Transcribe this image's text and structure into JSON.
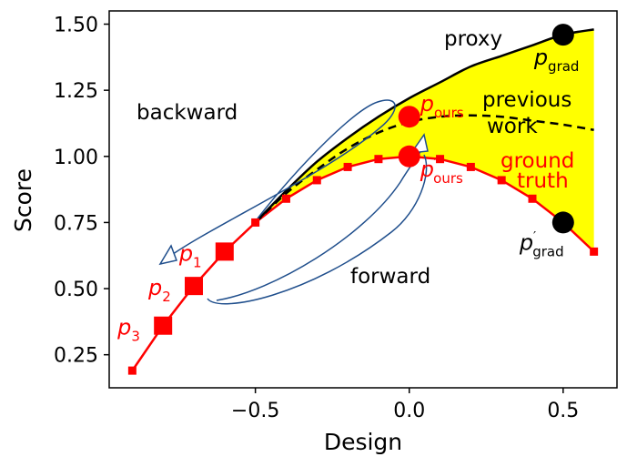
{
  "chart_data": {
    "type": "line",
    "xlabel": "Design",
    "ylabel": "Score",
    "xlim": [
      -0.975,
      0.675
    ],
    "ylim": [
      0.125,
      1.55
    ],
    "xticks": [
      -0.5,
      0.0,
      0.5
    ],
    "xtick_labels": [
      "−0.5",
      "0.0",
      "0.5"
    ],
    "yticks": [
      0.25,
      0.5,
      0.75,
      1.0,
      1.25,
      1.5
    ],
    "ytick_labels": [
      "0.25",
      "0.50",
      "0.75",
      "1.00",
      "1.25",
      "1.50"
    ],
    "grid": false,
    "series": [
      {
        "style": "ground-truth",
        "color": "#ff0000",
        "x": [
          -0.9,
          -0.8,
          -0.7,
          -0.6,
          -0.5,
          -0.4,
          -0.3,
          -0.2,
          -0.1,
          0.0,
          0.1,
          0.2,
          0.3,
          0.4,
          0.5,
          0.6
        ],
        "y": [
          0.19,
          0.36,
          0.51,
          0.64,
          0.75,
          0.84,
          0.91,
          0.96,
          0.99,
          1.0,
          0.99,
          0.96,
          0.91,
          0.84,
          0.75,
          0.64
        ]
      },
      {
        "style": "proxy",
        "color": "#000000",
        "x": [
          -0.5,
          -0.4,
          -0.3,
          -0.2,
          -0.1,
          0.0,
          0.1,
          0.2,
          0.3,
          0.4,
          0.5,
          0.6
        ],
        "y": [
          0.75,
          0.87,
          0.98,
          1.07,
          1.15,
          1.22,
          1.28,
          1.34,
          1.38,
          1.42,
          1.46,
          1.48
        ]
      },
      {
        "style": "previous-work",
        "color": "#000000",
        "x": [
          -0.5,
          -0.4,
          -0.3,
          -0.2,
          -0.1,
          0.0,
          0.1,
          0.2,
          0.3,
          0.4,
          0.5,
          0.6
        ],
        "y": [
          0.75,
          0.86,
          0.95,
          1.03,
          1.09,
          1.13,
          1.15,
          1.155,
          1.15,
          1.135,
          1.12,
          1.1
        ]
      }
    ],
    "fill_color": "#ffff00",
    "large_points": [
      {
        "x": -0.8,
        "y": 0.36,
        "color": "#ff0000",
        "label": "p",
        "sub": "3"
      },
      {
        "x": -0.7,
        "y": 0.51,
        "color": "#ff0000",
        "label": "p",
        "sub": "2"
      },
      {
        "x": -0.6,
        "y": 0.64,
        "color": "#ff0000",
        "label": "p",
        "sub": "1"
      }
    ],
    "circles": [
      {
        "x": 0.5,
        "y": 1.46,
        "color": "#000000",
        "label": "p",
        "sub": "grad",
        "prime": false
      },
      {
        "x": 0.5,
        "y": 0.75,
        "color": "#000000",
        "label": "p",
        "sub": "grad",
        "prime": true
      },
      {
        "x": 0.0,
        "y": 1.15,
        "color": "#ff0000",
        "label": "p",
        "sub": "ours",
        "prime": false
      },
      {
        "x": 0.0,
        "y": 1.0,
        "color": "#ff0000",
        "label": "p",
        "sub": "ours",
        "prime": true
      }
    ],
    "annotations": {
      "proxy": "proxy",
      "previous_line1": "previous",
      "previous_line2": "work",
      "ground_line1": "ground",
      "ground_line2": "truth",
      "backward": "backward",
      "forward": "forward",
      "prime_mark": "′"
    },
    "arrow_color": "#1f4e8c"
  }
}
